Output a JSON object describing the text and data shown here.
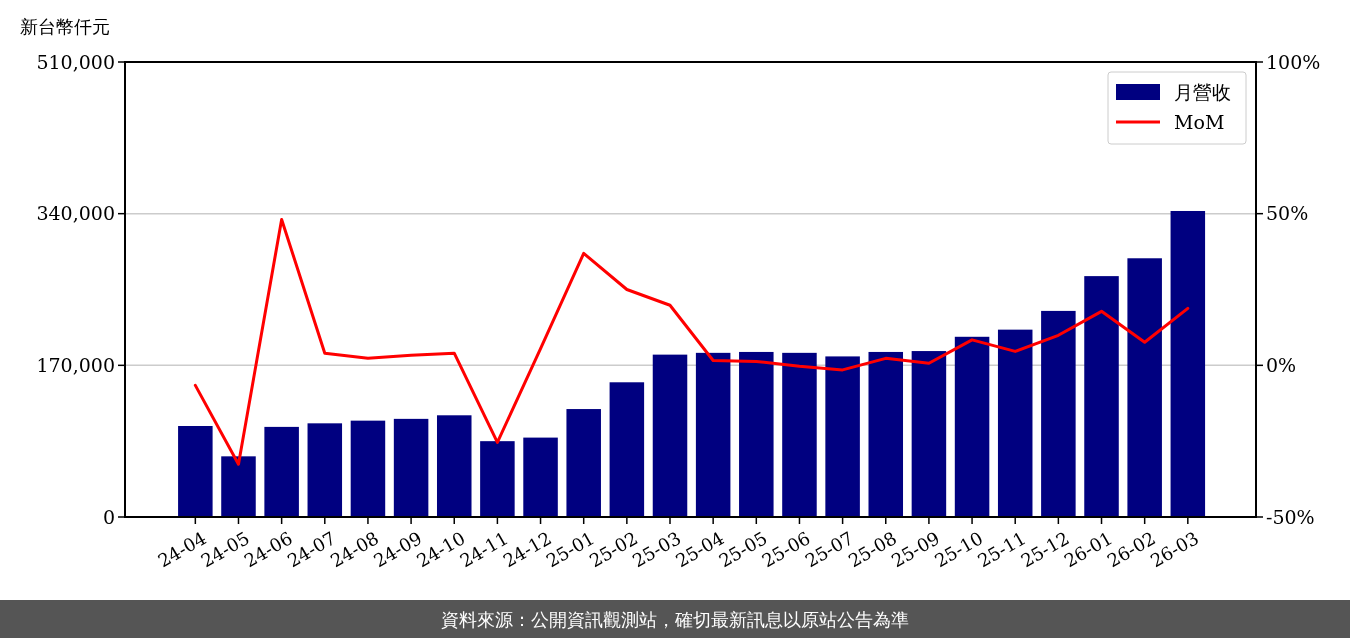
{
  "chart_data": {
    "type": "bar",
    "ylabel": "新台幣仟元",
    "categories": [
      "24-04",
      "24-05",
      "24-06",
      "24-07",
      "24-08",
      "24-09",
      "24-10",
      "24-11",
      "24-12",
      "25-01",
      "25-02",
      "25-03",
      "25-04",
      "25-05",
      "25-06",
      "25-07",
      "25-08",
      "25-09",
      "25-10",
      "25-11",
      "25-12",
      "26-01",
      "26-02",
      "26-03"
    ],
    "series": [
      {
        "name": "月營收",
        "color": "#000080",
        "values": [
          102000,
          68000,
          101000,
          105000,
          108000,
          110000,
          114000,
          85000,
          89000,
          121000,
          151000,
          182000,
          184000,
          185000,
          184000,
          180000,
          185000,
          186000,
          202000,
          210000,
          231000,
          270000,
          290000,
          343000
        ]
      },
      {
        "name": "MoM",
        "type": "line",
        "axis": "y2",
        "color": "#ff0000",
        "values": [
          -6.6,
          -32.6,
          48.1,
          4.0,
          2.3,
          3.3,
          4.0,
          -25.4,
          5.5,
          36.9,
          25.0,
          19.8,
          1.6,
          1.3,
          -0.3,
          -1.5,
          2.3,
          0.7,
          8.4,
          4.6,
          9.9,
          17.8,
          7.6,
          18.8
        ]
      }
    ],
    "ylim": [
      0,
      510000
    ],
    "yticks": [
      {
        "value": 0,
        "label": "0"
      },
      {
        "value": 170000,
        "label": "170,000"
      },
      {
        "value": 340000,
        "label": "340,000"
      },
      {
        "value": 510000,
        "label": "510,000"
      }
    ],
    "y2lim": [
      -50,
      100
    ],
    "y2ticks": [
      {
        "value": -50,
        "label": "-50%"
      },
      {
        "value": 0,
        "label": "0%"
      },
      {
        "value": 50,
        "label": "50%"
      },
      {
        "value": 100,
        "label": "100%"
      }
    ],
    "grid": "y",
    "legend": "top right",
    "annotations": [
      "資料來源：公開資訊觀測站，確切最新訊息以原站公告為準"
    ]
  }
}
